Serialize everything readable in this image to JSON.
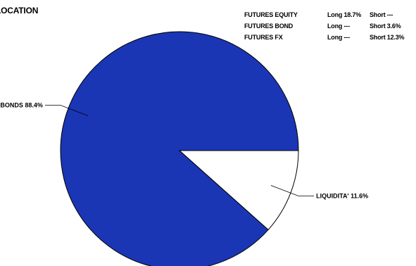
{
  "chart_data": {
    "type": "pie",
    "title": "LOCATION",
    "slices": [
      {
        "label": "BONDS 88.4%",
        "value": 88.4,
        "color": "#1a36b5"
      },
      {
        "label": "LIQUIDITA' 11.6%",
        "value": 11.6,
        "color": "#ffffff"
      }
    ],
    "futures": [
      {
        "name": "FUTURES EQUITY",
        "long": "Long 18.7%",
        "short": "Short ---"
      },
      {
        "name": "FUTURES BOND",
        "long": "Long ---",
        "short": "Short 3.6%"
      },
      {
        "name": "FUTURES FX",
        "long": "Long ---",
        "short": "Short 12.3%"
      }
    ],
    "colors": {
      "stroke": "#000000",
      "background": "#ffffff"
    }
  }
}
